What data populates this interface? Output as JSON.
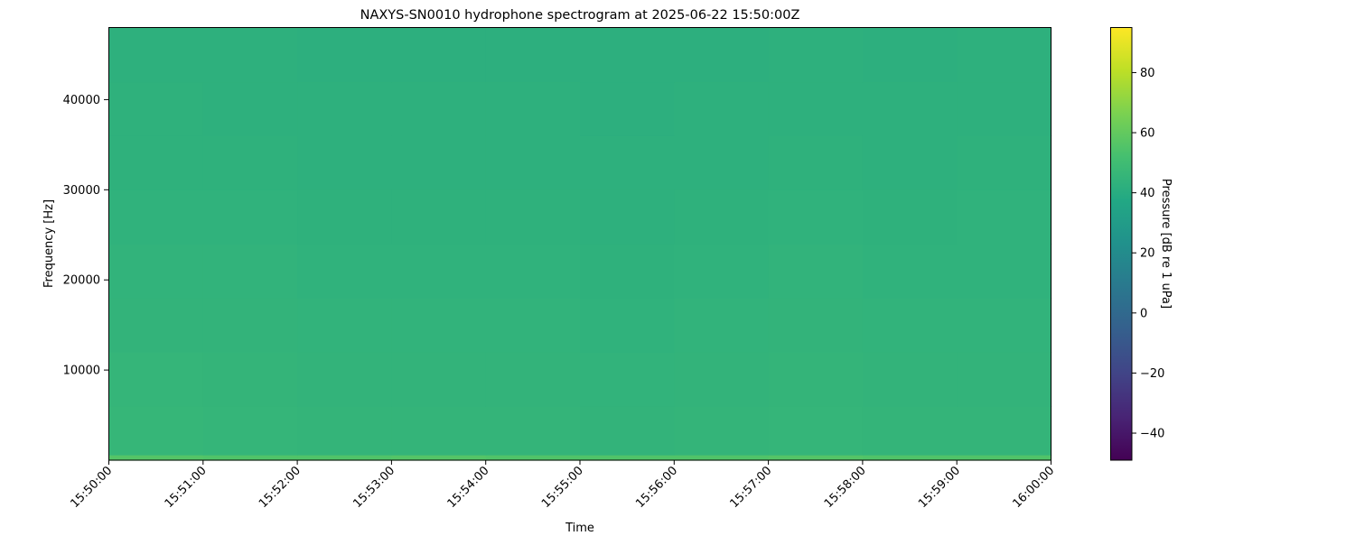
{
  "chart_data": {
    "type": "heatmap",
    "title": "NAXYS-SN0010 hydrophone spectrogram at 2025-06-22 15:50:00Z",
    "xlabel": "Time",
    "ylabel": "Frequency [Hz]",
    "colorbar_label": "Pressure [dB re 1 uPa]",
    "colormap": "viridis",
    "xlim": [
      "15:50:00",
      "16:00:00"
    ],
    "ylim": [
      0,
      48000
    ],
    "clim": [
      -49,
      95
    ],
    "x_ticks": [
      "15:50:00",
      "15:51:00",
      "15:52:00",
      "15:53:00",
      "15:54:00",
      "15:55:00",
      "15:56:00",
      "15:57:00",
      "15:58:00",
      "15:59:00",
      "16:00:00"
    ],
    "y_ticks": [
      10000,
      20000,
      30000,
      40000
    ],
    "y_tick_labels": [
      "10000",
      "20000",
      "30000",
      "40000"
    ],
    "colorbar_ticks": [
      -40,
      -20,
      0,
      20,
      40,
      60,
      80
    ],
    "colorbar_tick_labels": [
      "−40",
      "−20",
      "0",
      "20",
      "40",
      "60",
      "80"
    ],
    "time_bins": [
      "15:50:00",
      "15:51:00",
      "15:52:00",
      "15:53:00",
      "15:54:00",
      "15:55:00",
      "15:56:00",
      "15:57:00",
      "15:58:00",
      "15:59:00",
      "16:00:00"
    ],
    "frequency_bins_hz": [
      0,
      600,
      6000,
      12000,
      18000,
      24000,
      30000,
      36000,
      42000,
      48000
    ],
    "values_db": [
      [
        56,
        55,
        55,
        56,
        55,
        55,
        55,
        56,
        55,
        55
      ],
      [
        46,
        45.5,
        45,
        45,
        45,
        44.5,
        45,
        45.5,
        45,
        45
      ],
      [
        45.5,
        45,
        44.5,
        44.5,
        44.5,
        44,
        44.5,
        45,
        44.5,
        44.5
      ],
      [
        44.5,
        44.5,
        44,
        44,
        44,
        43.5,
        44,
        44.5,
        44,
        44
      ],
      [
        44,
        44,
        43.5,
        43.5,
        43.5,
        43,
        43.5,
        44,
        43.5,
        43.5
      ],
      [
        43.5,
        43.5,
        43,
        43,
        43,
        42.5,
        43,
        43.5,
        43,
        43.5
      ],
      [
        43,
        43,
        42.5,
        42.5,
        42.5,
        42.5,
        42.5,
        43,
        42.5,
        43
      ],
      [
        43,
        42.5,
        42.5,
        42.5,
        42.5,
        42,
        42.5,
        42.5,
        42.5,
        42.5
      ],
      [
        42.5,
        42.5,
        42,
        42,
        42,
        42,
        42,
        42.5,
        42,
        42.5
      ]
    ],
    "grid": false
  }
}
